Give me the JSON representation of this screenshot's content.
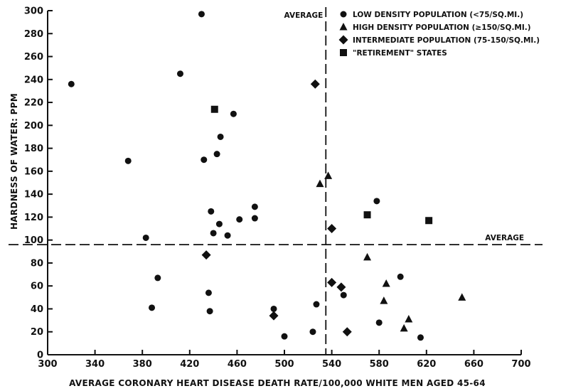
{
  "chart_data": {
    "type": "scatter",
    "title": "",
    "xlabel": "AVERAGE CORONARY HEART DISEASE DEATH RATE/100,000 WHITE MEN AGED 45-64",
    "ylabel": "HARDNESS OF WATER: PPM",
    "xlim": [
      300,
      700
    ],
    "ylim": [
      0,
      300
    ],
    "xticks": [
      "300",
      "340",
      "380",
      "420",
      "460",
      "500",
      "540",
      "580",
      "620",
      "660",
      "700"
    ],
    "yticks": [
      "0",
      "20",
      "40",
      "60",
      "80",
      "100",
      "120",
      "140",
      "160",
      "180",
      "200",
      "220",
      "240",
      "260",
      "280",
      "300"
    ],
    "grid": false,
    "legend_position": "top-right",
    "reference_lines": {
      "vertical": {
        "label": "AVERAGE",
        "x": 535
      },
      "horizontal": {
        "label": "AVERAGE",
        "y": 96
      }
    },
    "series": [
      {
        "name": "LOW DENSITY POPULATION (<75/SQ.MI.)",
        "marker": "circle",
        "points": [
          [
            320,
            236
          ],
          [
            368,
            169
          ],
          [
            383,
            102
          ],
          [
            393,
            67
          ],
          [
            388,
            41
          ],
          [
            412,
            245
          ],
          [
            430,
            297
          ],
          [
            432,
            170
          ],
          [
            436,
            54
          ],
          [
            437,
            38
          ],
          [
            438,
            125
          ],
          [
            440,
            106
          ],
          [
            443,
            175
          ],
          [
            445,
            114
          ],
          [
            446,
            190
          ],
          [
            452,
            104
          ],
          [
            457,
            210
          ],
          [
            462,
            118
          ],
          [
            475,
            119
          ],
          [
            475,
            129
          ],
          [
            491,
            40
          ],
          [
            500,
            16
          ],
          [
            524,
            20
          ],
          [
            527,
            44
          ],
          [
            550,
            52
          ],
          [
            578,
            134
          ],
          [
            580,
            28
          ],
          [
            598,
            68
          ],
          [
            615,
            15
          ]
        ]
      },
      {
        "name": "HIGH DENSITY POPULATION (≥150/SQ.MI.)",
        "marker": "triangle",
        "points": [
          [
            530,
            149
          ],
          [
            537,
            156
          ],
          [
            570,
            85
          ],
          [
            584,
            47
          ],
          [
            586,
            62
          ],
          [
            601,
            23
          ],
          [
            605,
            31
          ],
          [
            650,
            50
          ]
        ]
      },
      {
        "name": "INTERMEDIATE POPULATION (75-150/SQ.MI.)",
        "marker": "diamond",
        "points": [
          [
            434,
            87
          ],
          [
            491,
            34
          ],
          [
            526,
            236
          ],
          [
            540,
            63
          ],
          [
            540,
            110
          ],
          [
            548,
            59
          ],
          [
            553,
            20
          ]
        ]
      },
      {
        "name": "\"RETIREMENT\" STATES",
        "marker": "square",
        "points": [
          [
            441,
            214
          ],
          [
            570,
            122
          ],
          [
            622,
            117
          ]
        ]
      }
    ]
  }
}
